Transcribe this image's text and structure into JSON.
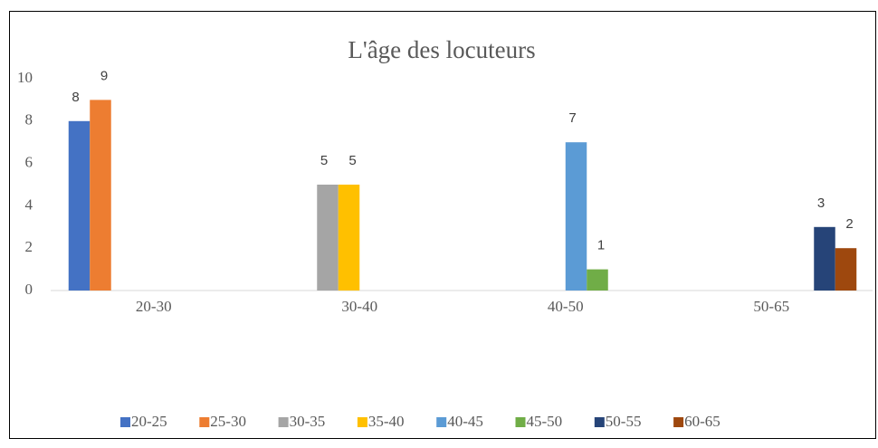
{
  "chart_data": {
    "type": "bar",
    "title": "L'âge des locuteurs",
    "categories": [
      "20-30",
      "30-40",
      "40-50",
      "50-65"
    ],
    "series": [
      {
        "name": "20-25",
        "color": "#4472c4",
        "values": [
          8,
          null,
          null,
          null
        ]
      },
      {
        "name": "25-30",
        "color": "#ed7d31",
        "values": [
          9,
          null,
          null,
          null
        ]
      },
      {
        "name": "30-35",
        "color": "#a5a5a5",
        "values": [
          null,
          5,
          null,
          null
        ]
      },
      {
        "name": "35-40",
        "color": "#ffc000",
        "values": [
          null,
          5,
          null,
          null
        ]
      },
      {
        "name": "40-45",
        "color": "#5b9bd5",
        "values": [
          null,
          null,
          7,
          null
        ]
      },
      {
        "name": "45-50",
        "color": "#70ad47",
        "values": [
          null,
          null,
          1,
          null
        ]
      },
      {
        "name": "50-55",
        "color": "#264478",
        "values": [
          null,
          null,
          null,
          3
        ]
      },
      {
        "name": "60-65",
        "color": "#9e480e",
        "values": [
          null,
          null,
          null,
          2
        ]
      }
    ],
    "ylim": [
      0,
      10
    ],
    "yticks": [
      0,
      2,
      4,
      6,
      8,
      10
    ],
    "grid": false,
    "legend": "bottom"
  }
}
